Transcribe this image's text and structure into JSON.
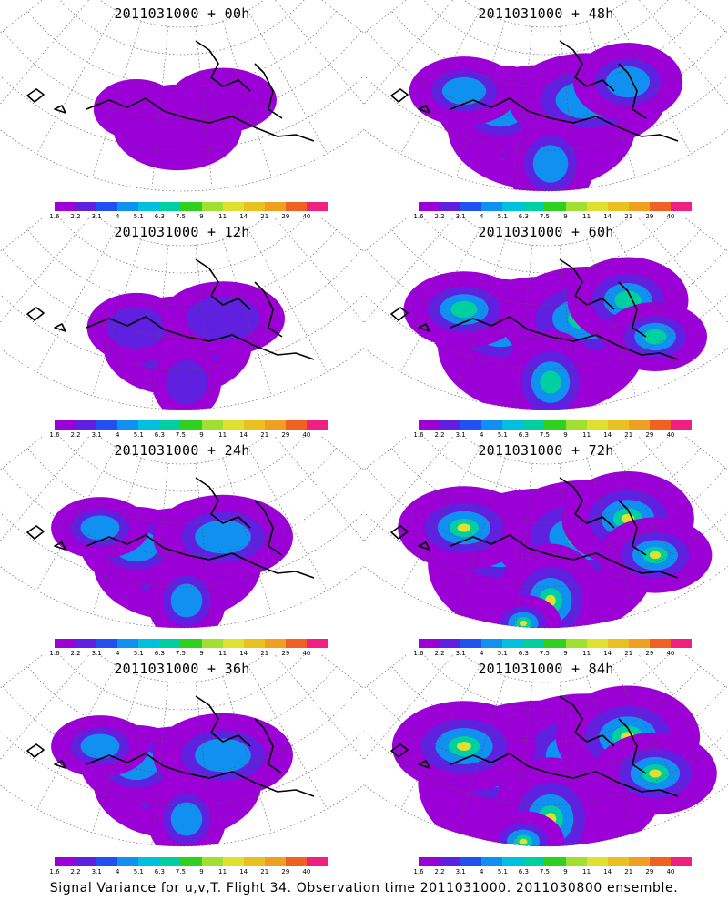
{
  "figure": {
    "caption": "Signal Variance for u,v,T. Flight 34. Observation time 2011031000. 2011030800 ensemble."
  },
  "colorbar": {
    "labels": [
      "1.6",
      "2.2",
      "3.1",
      "4",
      "5.1",
      "6.3",
      "7.5",
      "9",
      "11",
      "14",
      "21",
      "29",
      "40"
    ],
    "colors": [
      "#9b00d6",
      "#6020e0",
      "#2050f0",
      "#1090f0",
      "#00c0e0",
      "#00d0a0",
      "#30d020",
      "#a0e030",
      "#e0e030",
      "#e8c020",
      "#f0a020",
      "#f06020",
      "#f02080"
    ]
  },
  "panels": [
    {
      "title": "2011031000 + 00h",
      "level": 1
    },
    {
      "title": "2011031000 + 48h",
      "level": 4
    },
    {
      "title": "2011031000 + 12h",
      "level": 2
    },
    {
      "title": "2011031000 + 60h",
      "level": 5
    },
    {
      "title": "2011031000 + 24h",
      "level": 3
    },
    {
      "title": "2011031000 + 72h",
      "level": 6
    },
    {
      "title": "2011031000 + 36h",
      "level": 3
    },
    {
      "title": "2011031000 + 84h",
      "level": 7
    }
  ]
}
